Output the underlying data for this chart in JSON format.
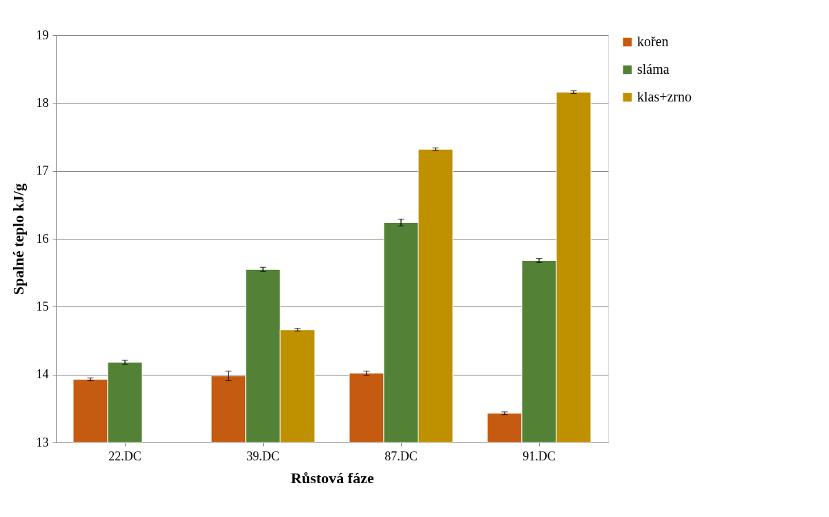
{
  "chart_data": {
    "type": "bar",
    "xlabel": "Růstová fáze",
    "ylabel": "Spalné teplo kJ/g",
    "categories": [
      "22.DC",
      "39.DC",
      "87.DC",
      "91.DC"
    ],
    "series": [
      {
        "name": "kořen",
        "color": "#c55a11",
        "values": [
          13.93,
          13.98,
          14.02,
          13.43
        ],
        "errors": [
          0.02,
          0.07,
          0.03,
          0.02
        ]
      },
      {
        "name": "sláma",
        "color": "#538135",
        "values": [
          14.18,
          15.55,
          16.24,
          15.68
        ],
        "errors": [
          0.03,
          0.03,
          0.05,
          0.03
        ]
      },
      {
        "name": "klas+zrno",
        "color": "#bf9000",
        "values": [
          null,
          14.66,
          17.32,
          18.16
        ],
        "errors": [
          null,
          0.02,
          0.02,
          0.02
        ]
      }
    ],
    "ylim": [
      13,
      19
    ],
    "yticks": [
      13,
      14,
      15,
      16,
      17,
      18,
      19
    ],
    "grid": "y",
    "legend": "right"
  }
}
